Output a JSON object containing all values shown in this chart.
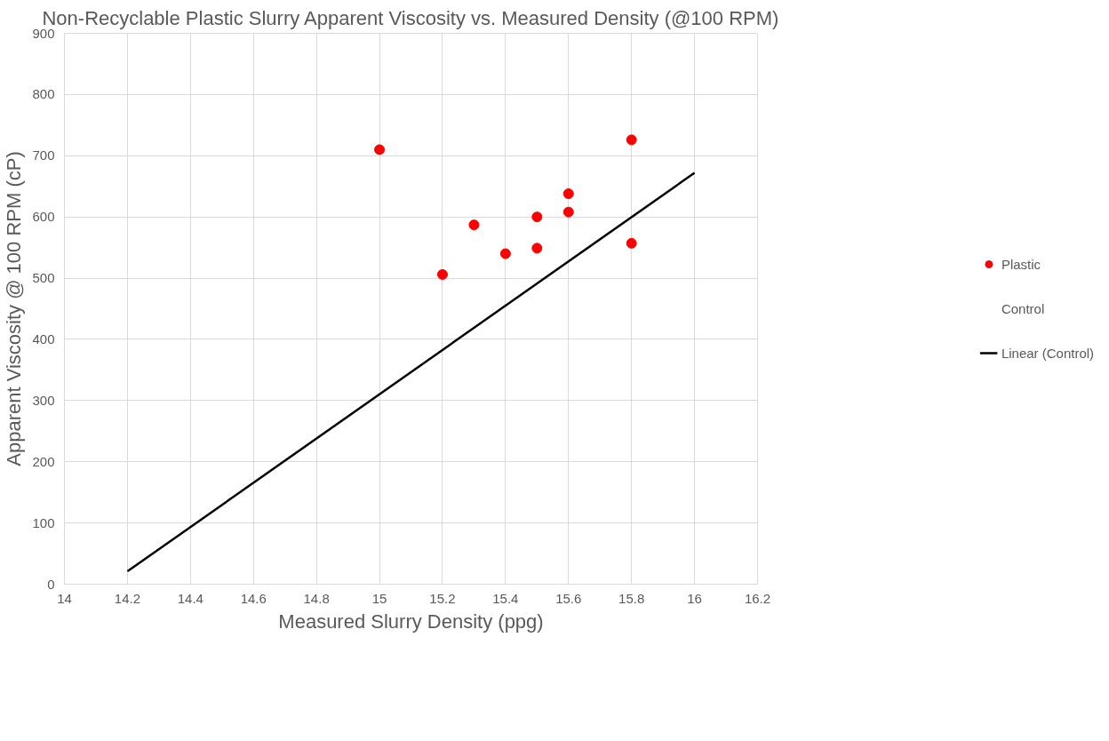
{
  "chart_data": {
    "type": "scatter",
    "title": "Non-Recyclable Plastic Slurry Apparent Viscosity vs. Measured Density (@100 RPM)",
    "xlabel": "Measured Slurry Density (ppg)",
    "ylabel": "Apparent Viscosity @ 100 RPM (cP)",
    "xlim": [
      14,
      16.2
    ],
    "xticks": [
      14,
      14.2,
      14.4,
      14.6,
      14.8,
      15,
      15.2,
      15.4,
      15.6,
      15.8,
      16,
      16.2
    ],
    "ylim": [
      0,
      900
    ],
    "yticks": [
      0,
      100,
      200,
      300,
      400,
      500,
      600,
      700,
      800,
      900
    ],
    "grid": true,
    "legend": "right",
    "series": [
      {
        "name": "Plastic",
        "color": "#ff0000",
        "marker": "circle",
        "x": [
          15.0,
          15.2,
          15.3,
          15.4,
          15.5,
          15.5,
          15.6,
          15.6,
          15.8,
          15.8
        ],
        "values": [
          710,
          506,
          587,
          540,
          600,
          549,
          638,
          608,
          726,
          557
        ]
      },
      {
        "name": "Control"
      },
      {
        "name": "Linear (Control)",
        "type": "line",
        "color": "#000000",
        "line_style": "solid",
        "x": [
          14.2,
          16.0
        ],
        "values": [
          21,
          672
        ]
      }
    ]
  }
}
